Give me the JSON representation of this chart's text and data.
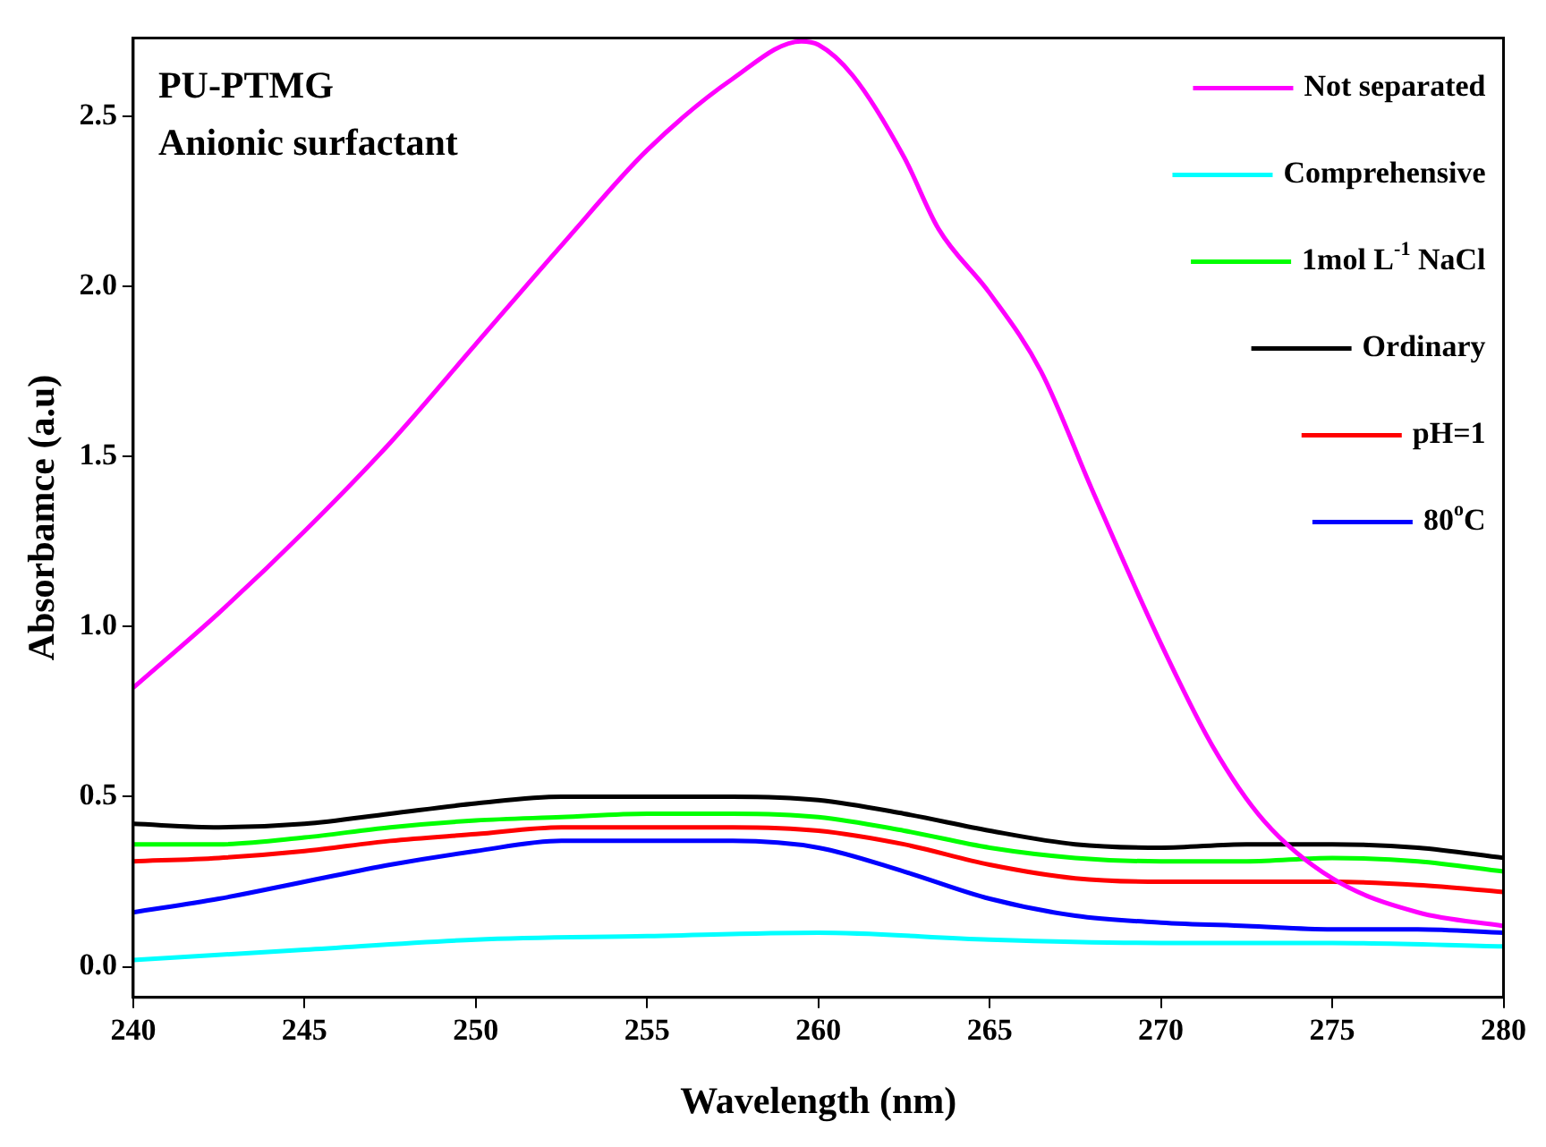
{
  "chart_data": {
    "type": "line",
    "title": "PU-PTMG",
    "subtitle": "Anionic surfactant",
    "xlabel": "Wavelength (nm)",
    "ylabel": "Absorbamce (a.u)",
    "xlim": [
      240,
      280
    ],
    "xticks": [
      240,
      245,
      250,
      255,
      260,
      265,
      270,
      275,
      280
    ],
    "ylim": [
      -0.09,
      2.73
    ],
    "yticks": [
      {
        "value": 0,
        "label": "0.0"
      },
      {
        "value": 0.5,
        "label": "0.5"
      },
      {
        "value": 1,
        "label": "1.0"
      },
      {
        "value": 1.5,
        "label": "1.5"
      },
      {
        "value": 2,
        "label": "2.0"
      },
      {
        "value": 2.5,
        "label": "2.5"
      }
    ],
    "grid": false,
    "legend": "top right",
    "marker": "none",
    "line_style": "solid",
    "series": [
      {
        "name": "Not separated",
        "color": "#ff00ff",
        "x": [
          240,
          242.5,
          245,
          247.5,
          250,
          252.5,
          255,
          257.5,
          259.5,
          260,
          261,
          262.5,
          263.5,
          265,
          266.5,
          268,
          270,
          271.5,
          273,
          275,
          277.5,
          280
        ],
        "values": [
          0.82,
          1.04,
          1.28,
          1.54,
          1.83,
          2.12,
          2.4,
          2.61,
          2.72,
          2.71,
          2.62,
          2.38,
          2.17,
          1.98,
          1.75,
          1.4,
          0.95,
          0.65,
          0.43,
          0.26,
          0.16,
          0.12
        ]
      },
      {
        "name": "Comprehensive",
        "color": "#00ffff",
        "x": [
          240,
          245,
          250,
          255,
          260,
          265,
          270,
          275,
          280
        ],
        "values": [
          0.02,
          0.05,
          0.08,
          0.09,
          0.1,
          0.08,
          0.07,
          0.07,
          0.06
        ]
      },
      {
        "name": "1mol L$^{-1}$ NaCl",
        "color": "#00ff00",
        "x": [
          240,
          242.5,
          245,
          247.5,
          250,
          252.5,
          255,
          257.5,
          260,
          262.5,
          265,
          267.5,
          270,
          272.5,
          275,
          277.5,
          280
        ],
        "values": [
          0.36,
          0.36,
          0.38,
          0.41,
          0.43,
          0.44,
          0.45,
          0.45,
          0.44,
          0.4,
          0.35,
          0.32,
          0.31,
          0.31,
          0.32,
          0.31,
          0.28
        ]
      },
      {
        "name": "Ordinary",
        "color": "#000000",
        "x": [
          240,
          242.5,
          245,
          247.5,
          250,
          252.5,
          255,
          257.5,
          260,
          262.5,
          265,
          267.5,
          270,
          272.5,
          275,
          277.5,
          280
        ],
        "values": [
          0.42,
          0.41,
          0.42,
          0.45,
          0.48,
          0.5,
          0.5,
          0.5,
          0.49,
          0.45,
          0.4,
          0.36,
          0.35,
          0.36,
          0.36,
          0.35,
          0.32
        ]
      },
      {
        "name": "pH=1",
        "color": "#ff0000",
        "x": [
          240,
          242.5,
          245,
          247.5,
          250,
          252.5,
          255,
          257.5,
          260,
          262.5,
          265,
          267.5,
          270,
          272.5,
          275,
          277.5,
          280
        ],
        "values": [
          0.31,
          0.32,
          0.34,
          0.37,
          0.39,
          0.41,
          0.41,
          0.41,
          0.4,
          0.36,
          0.3,
          0.26,
          0.25,
          0.25,
          0.25,
          0.24,
          0.22
        ]
      },
      {
        "name": "80$^{o}$C",
        "color": "#0000ff",
        "x": [
          240,
          242.5,
          245,
          247.5,
          250,
          252.5,
          255,
          257.5,
          260,
          262.5,
          265,
          267.5,
          270,
          272.5,
          275,
          277.5,
          280
        ],
        "values": [
          0.16,
          0.2,
          0.25,
          0.3,
          0.34,
          0.37,
          0.37,
          0.37,
          0.35,
          0.28,
          0.2,
          0.15,
          0.13,
          0.12,
          0.11,
          0.11,
          0.1
        ]
      }
    ]
  }
}
